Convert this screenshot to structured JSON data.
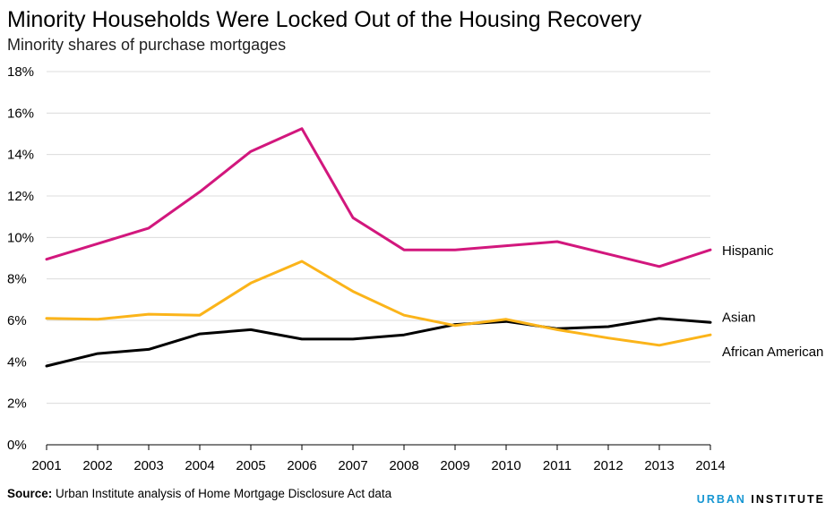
{
  "header": {
    "title": "Minority Households Were Locked Out of the Housing Recovery",
    "subtitle": "Minority shares of purchase mortgages"
  },
  "footer": {
    "source_label": "Source:",
    "source_text": " Urban Institute analysis of Home Mortgage Disclosure Act data",
    "logo_part1": "URBAN",
    "logo_part2": " INSTITUTE"
  },
  "colors": {
    "Hispanic": "#d2177d",
    "African American": "#fbb41a",
    "Asian": "#000000",
    "grid": "#dcdcdc"
  },
  "chart_data": {
    "type": "line",
    "title": "Minority Households Were Locked Out of the Housing Recovery",
    "subtitle": "Minority shares of purchase mortgages",
    "x": [
      2001,
      2002,
      2003,
      2004,
      2005,
      2006,
      2007,
      2008,
      2009,
      2010,
      2011,
      2012,
      2013,
      2014
    ],
    "xlabel": "",
    "ylabel": "",
    "ylim": [
      0,
      18
    ],
    "yticks": [
      0,
      2,
      4,
      6,
      8,
      10,
      12,
      14,
      16,
      18
    ],
    "ytick_labels": [
      "0%",
      "2%",
      "4%",
      "6%",
      "8%",
      "10%",
      "12%",
      "14%",
      "16%",
      "18%"
    ],
    "grid": true,
    "legend": "labels at line ends (right)",
    "series": [
      {
        "name": "Hispanic",
        "values": [
          8.95,
          9.7,
          10.45,
          12.2,
          14.15,
          15.25,
          10.95,
          9.4,
          9.4,
          9.6,
          9.8,
          9.2,
          8.6,
          9.4
        ]
      },
      {
        "name": "Asian",
        "values": [
          3.8,
          4.4,
          4.6,
          5.35,
          5.55,
          5.1,
          5.1,
          5.3,
          5.8,
          5.95,
          5.6,
          5.7,
          6.1,
          5.9
        ]
      },
      {
        "name": "African American",
        "values": [
          6.1,
          6.05,
          6.3,
          6.25,
          7.8,
          8.85,
          7.4,
          6.25,
          5.75,
          6.05,
          5.55,
          5.15,
          4.8,
          5.3
        ]
      }
    ]
  }
}
